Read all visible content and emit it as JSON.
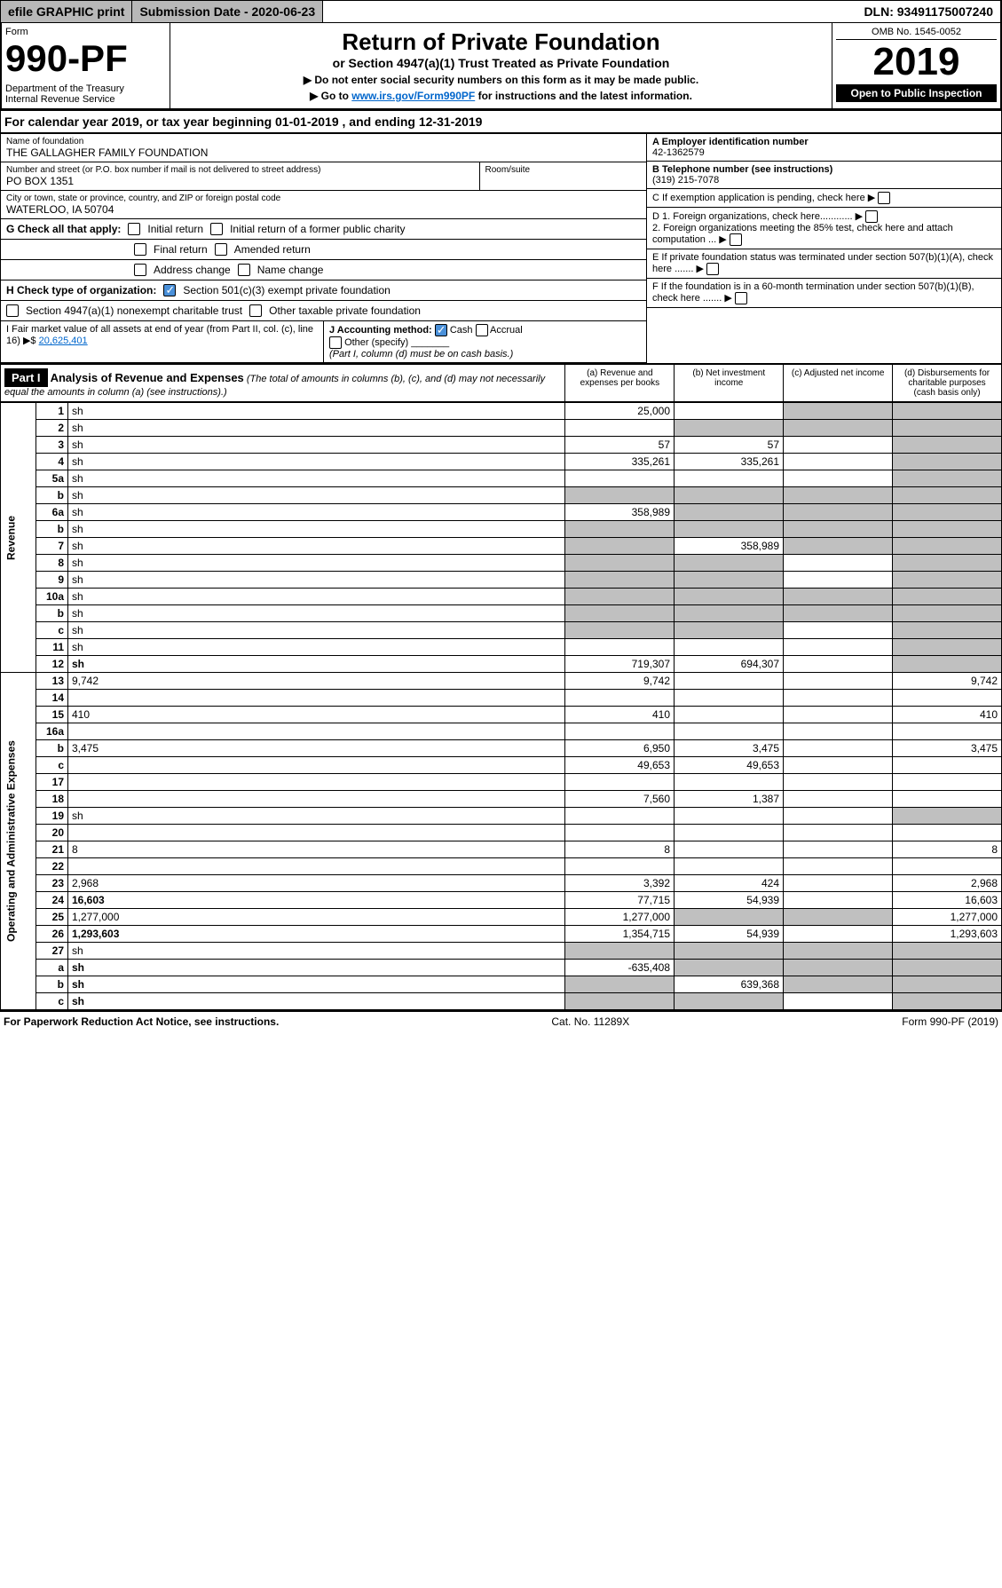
{
  "topbar": {
    "efile": "efile GRAPHIC print",
    "subdate_label": "Submission Date - 2020-06-23",
    "dln": "DLN: 93491175007240"
  },
  "header": {
    "form_label": "Form",
    "form_number": "990-PF",
    "dept": "Department of the Treasury\nInternal Revenue Service",
    "title": "Return of Private Foundation",
    "subtitle": "or Section 4947(a)(1) Trust Treated as Private Foundation",
    "instr1": "▶ Do not enter social security numbers on this form as it may be made public.",
    "instr2_pre": "▶ Go to ",
    "instr2_link": "www.irs.gov/Form990PF",
    "instr2_post": " for instructions and the latest information.",
    "omb": "OMB No. 1545-0052",
    "year": "2019",
    "open_public": "Open to Public Inspection"
  },
  "calyear": "For calendar year 2019, or tax year beginning 01-01-2019                          , and ending 12-31-2019",
  "entity": {
    "name_label": "Name of foundation",
    "name": "THE GALLAGHER FAMILY FOUNDATION",
    "addr_label": "Number and street (or P.O. box number if mail is not delivered to street address)",
    "addr": "PO BOX 1351",
    "room_label": "Room/suite",
    "city_label": "City or town, state or province, country, and ZIP or foreign postal code",
    "city": "WATERLOO, IA  50704",
    "ein_label": "A Employer identification number",
    "ein": "42-1362579",
    "phone_label": "B Telephone number (see instructions)",
    "phone": "(319) 215-7078",
    "c_label": "C If exemption application is pending, check here",
    "d1": "D 1. Foreign organizations, check here............",
    "d2": "2. Foreign organizations meeting the 85% test, check here and attach computation ...",
    "e": "E If private foundation status was terminated under section 507(b)(1)(A), check here .......",
    "f": "F If the foundation is in a 60-month termination under section 507(b)(1)(B), check here .......",
    "g_label": "G Check all that apply:",
    "g_initial": "Initial return",
    "g_initial_former": "Initial return of a former public charity",
    "g_final": "Final return",
    "g_amended": "Amended return",
    "g_address": "Address change",
    "g_name": "Name change",
    "h_label": "H Check type of organization:",
    "h_501c3": "Section 501(c)(3) exempt private foundation",
    "h_4947": "Section 4947(a)(1) nonexempt charitable trust",
    "h_other": "Other taxable private foundation",
    "i_label": "I Fair market value of all assets at end of year (from Part II, col. (c), line 16) ▶$",
    "i_value": "20,625,401",
    "j_label": "J Accounting method:",
    "j_cash": "Cash",
    "j_accrual": "Accrual",
    "j_other": "Other (specify)",
    "j_note": "(Part I, column (d) must be on cash basis.)"
  },
  "part1": {
    "label": "Part I",
    "title": "Analysis of Revenue and Expenses",
    "note": "(The total of amounts in columns (b), (c), and (d) may not necessarily equal the amounts in column (a) (see instructions).)",
    "col_a": "(a)    Revenue and expenses per books",
    "col_b": "(b)   Net investment income",
    "col_c": "(c)   Adjusted net income",
    "col_d": "(d)   Disbursements for charitable purposes (cash basis only)",
    "revenue_label": "Revenue",
    "expenses_label": "Operating and Administrative Expenses"
  },
  "rows": [
    {
      "n": "1",
      "d": "sh",
      "a": "25,000",
      "b": "",
      "c": "sh"
    },
    {
      "n": "2",
      "d": "sh",
      "a": "",
      "b": "sh",
      "c": "sh"
    },
    {
      "n": "3",
      "d": "sh",
      "a": "57",
      "b": "57",
      "c": ""
    },
    {
      "n": "4",
      "d": "sh",
      "a": "335,261",
      "b": "335,261",
      "c": ""
    },
    {
      "n": "5a",
      "d": "sh",
      "a": "",
      "b": "",
      "c": ""
    },
    {
      "n": "b",
      "d": "sh",
      "a": "sh",
      "b": "sh",
      "c": "sh"
    },
    {
      "n": "6a",
      "d": "sh",
      "a": "358,989",
      "b": "sh",
      "c": "sh"
    },
    {
      "n": "b",
      "d": "sh",
      "a": "sh",
      "b": "sh",
      "c": "sh"
    },
    {
      "n": "7",
      "d": "sh",
      "a": "sh",
      "b": "358,989",
      "c": "sh"
    },
    {
      "n": "8",
      "d": "sh",
      "a": "sh",
      "b": "sh",
      "c": ""
    },
    {
      "n": "9",
      "d": "sh",
      "a": "sh",
      "b": "sh",
      "c": ""
    },
    {
      "n": "10a",
      "d": "sh",
      "a": "sh",
      "b": "sh",
      "c": "sh"
    },
    {
      "n": "b",
      "d": "sh",
      "a": "sh",
      "b": "sh",
      "c": "sh"
    },
    {
      "n": "c",
      "d": "sh",
      "a": "sh",
      "b": "sh",
      "c": ""
    },
    {
      "n": "11",
      "d": "sh",
      "a": "",
      "b": "",
      "c": ""
    },
    {
      "n": "12",
      "d": "sh",
      "a": "719,307",
      "b": "694,307",
      "c": "",
      "bold": true
    },
    {
      "n": "13",
      "d": "9,742",
      "a": "9,742",
      "b": "",
      "c": ""
    },
    {
      "n": "14",
      "d": "",
      "a": "",
      "b": "",
      "c": ""
    },
    {
      "n": "15",
      "d": "410",
      "a": "410",
      "b": "",
      "c": ""
    },
    {
      "n": "16a",
      "d": "",
      "a": "",
      "b": "",
      "c": ""
    },
    {
      "n": "b",
      "d": "3,475",
      "a": "6,950",
      "b": "3,475",
      "c": ""
    },
    {
      "n": "c",
      "d": "",
      "a": "49,653",
      "b": "49,653",
      "c": ""
    },
    {
      "n": "17",
      "d": "",
      "a": "",
      "b": "",
      "c": ""
    },
    {
      "n": "18",
      "d": "",
      "a": "7,560",
      "b": "1,387",
      "c": ""
    },
    {
      "n": "19",
      "d": "sh",
      "a": "",
      "b": "",
      "c": ""
    },
    {
      "n": "20",
      "d": "",
      "a": "",
      "b": "",
      "c": ""
    },
    {
      "n": "21",
      "d": "8",
      "a": "8",
      "b": "",
      "c": ""
    },
    {
      "n": "22",
      "d": "",
      "a": "",
      "b": "",
      "c": ""
    },
    {
      "n": "23",
      "d": "2,968",
      "a": "3,392",
      "b": "424",
      "c": ""
    },
    {
      "n": "24",
      "d": "16,603",
      "a": "77,715",
      "b": "54,939",
      "c": "",
      "bold": true
    },
    {
      "n": "25",
      "d": "1,277,000",
      "a": "1,277,000",
      "b": "sh",
      "c": "sh"
    },
    {
      "n": "26",
      "d": "1,293,603",
      "a": "1,354,715",
      "b": "54,939",
      "c": "",
      "bold": true
    },
    {
      "n": "27",
      "d": "sh",
      "a": "sh",
      "b": "sh",
      "c": "sh"
    },
    {
      "n": "a",
      "d": "sh",
      "a": "-635,408",
      "b": "sh",
      "c": "sh",
      "bold": true
    },
    {
      "n": "b",
      "d": "sh",
      "a": "sh",
      "b": "639,368",
      "c": "sh",
      "bold": true
    },
    {
      "n": "c",
      "d": "sh",
      "a": "sh",
      "b": "sh",
      "c": "",
      "bold": true
    }
  ],
  "footer": {
    "left": "For Paperwork Reduction Act Notice, see instructions.",
    "mid": "Cat. No. 11289X",
    "right": "Form 990-PF (2019)"
  }
}
